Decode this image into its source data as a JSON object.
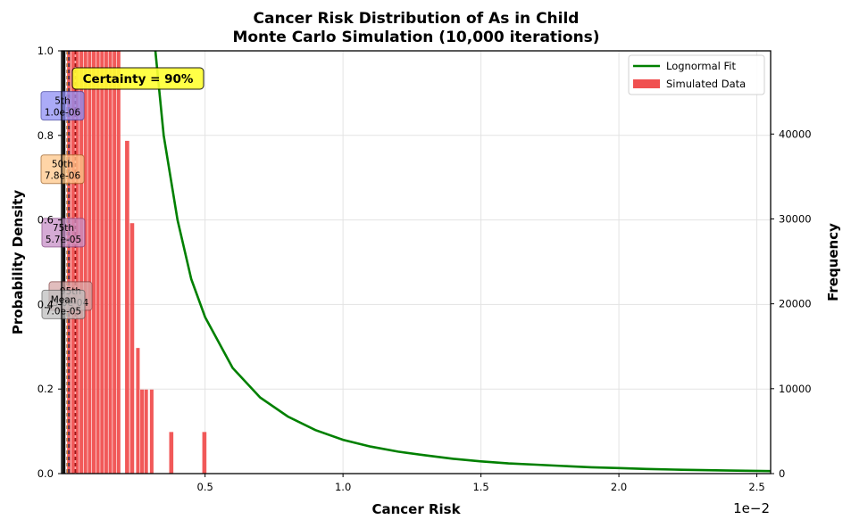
{
  "chart_data": {
    "type": "bar",
    "title": "Cancer Risk Distribution of As in Child",
    "subtitle": "Monte Carlo Simulation (10,000 iterations)",
    "xlabel": "Cancer Risk",
    "ylabel": "Probability Density",
    "y2label": "Frequency",
    "x_offset_label": "1e−2",
    "xlim": [
      -0.0002,
      0.0255
    ],
    "ylim": [
      0,
      1.0
    ],
    "y2lim": [
      0,
      49800
    ],
    "x_ticks": [
      0.005,
      0.01,
      0.015,
      0.02,
      0.025
    ],
    "x_tick_labels": [
      "0.5",
      "1.0",
      "1.5",
      "2.0",
      "2.5"
    ],
    "y_ticks": [
      0.0,
      0.2,
      0.4,
      0.6,
      0.8,
      1.0
    ],
    "y_tick_labels": [
      "0.0",
      "0.2",
      "0.4",
      "0.6",
      "0.8",
      "1.0"
    ],
    "y2_ticks": [
      0,
      10000,
      20000,
      30000,
      40000
    ],
    "y2_tick_labels": [
      "0",
      "10000",
      "20000",
      "30000",
      "40000"
    ],
    "grid": true,
    "legend_position": "top-right",
    "series": [
      {
        "name": "Simulated Data",
        "kind": "histogram",
        "color": "#f05050",
        "axis": "frequency",
        "bins": [
          {
            "x0": 0.0,
            "x1": 0.00013,
            "freq": 49800
          },
          {
            "x0": 0.00015,
            "x1": 0.00028,
            "freq": 49800
          },
          {
            "x0": 0.0003,
            "x1": 0.00043,
            "freq": 49800
          },
          {
            "x0": 0.00045,
            "x1": 0.00058,
            "freq": 49800
          },
          {
            "x0": 0.0006,
            "x1": 0.00073,
            "freq": 49800
          },
          {
            "x0": 0.00075,
            "x1": 0.00088,
            "freq": 49800
          },
          {
            "x0": 0.0009,
            "x1": 0.00103,
            "freq": 49800
          },
          {
            "x0": 0.00105,
            "x1": 0.00118,
            "freq": 49800
          },
          {
            "x0": 0.0012,
            "x1": 0.00133,
            "freq": 49800
          },
          {
            "x0": 0.00135,
            "x1": 0.00148,
            "freq": 49800
          },
          {
            "x0": 0.0015,
            "x1": 0.00163,
            "freq": 49800
          },
          {
            "x0": 0.00165,
            "x1": 0.00178,
            "freq": 49800
          },
          {
            "x0": 0.0018,
            "x1": 0.00193,
            "freq": 49800
          },
          {
            "x0": 0.0021,
            "x1": 0.00225,
            "freq": 39200
          },
          {
            "x0": 0.00228,
            "x1": 0.00243,
            "freq": 29500
          },
          {
            "x0": 0.0025,
            "x1": 0.00263,
            "freq": 14800
          },
          {
            "x0": 0.00265,
            "x1": 0.00278,
            "freq": 9900
          },
          {
            "x0": 0.0028,
            "x1": 0.00293,
            "freq": 9900
          },
          {
            "x0": 0.003,
            "x1": 0.00313,
            "freq": 9900
          },
          {
            "x0": 0.0037,
            "x1": 0.00385,
            "freq": 4900
          },
          {
            "x0": 0.0049,
            "x1": 0.00505,
            "freq": 4900
          }
        ]
      },
      {
        "name": "Lognormal Fit",
        "kind": "line",
        "color": "#008000",
        "axis": "density",
        "points": [
          [
            0.0032,
            1.0
          ],
          [
            0.0035,
            0.8
          ],
          [
            0.004,
            0.6
          ],
          [
            0.0045,
            0.46
          ],
          [
            0.005,
            0.37
          ],
          [
            0.006,
            0.25
          ],
          [
            0.007,
            0.18
          ],
          [
            0.008,
            0.135
          ],
          [
            0.009,
            0.103
          ],
          [
            0.01,
            0.08
          ],
          [
            0.011,
            0.064
          ],
          [
            0.012,
            0.052
          ],
          [
            0.013,
            0.043
          ],
          [
            0.014,
            0.035
          ],
          [
            0.015,
            0.029
          ],
          [
            0.016,
            0.024
          ],
          [
            0.017,
            0.021
          ],
          [
            0.018,
            0.018
          ],
          [
            0.019,
            0.015
          ],
          [
            0.02,
            0.013
          ],
          [
            0.021,
            0.011
          ],
          [
            0.022,
            0.0095
          ],
          [
            0.023,
            0.0082
          ],
          [
            0.024,
            0.0072
          ],
          [
            0.0255,
            0.006
          ]
        ]
      }
    ],
    "reference_lines": [
      {
        "x": 1e-06,
        "color": "#0000cc"
      },
      {
        "x": 7.8e-06,
        "color": "#ff8c00"
      },
      {
        "x": 5.7e-05,
        "color": "#800080"
      },
      {
        "x": 0.0003,
        "color": "#8b0000"
      },
      {
        "x": 7e-05,
        "color": "#444444"
      }
    ],
    "annotations": [
      {
        "label": "5th",
        "value": "1.0e-06",
        "fill": "#8f8ff5",
        "border": "#4040a0",
        "y": 0.87
      },
      {
        "label": "50th",
        "value": "7.8e-06",
        "fill": "#ffc88a",
        "border": "#a06020",
        "y": 0.72
      },
      {
        "label": "75th",
        "value": "5.7e-05",
        "fill": "#c890c8",
        "border": "#804080",
        "y": 0.57
      },
      {
        "label": "95th",
        "value": "3.0e-04",
        "fill": "#d8a8a8",
        "border": "#804040",
        "y": 0.42
      },
      {
        "label": "Mean",
        "value": "7.0e-05",
        "fill": "#c0c0c0",
        "border": "#606060",
        "y": 0.4
      }
    ],
    "certainty": {
      "text": "Certainty = 90%",
      "fill": "#ffff33",
      "border": "#000000"
    }
  }
}
